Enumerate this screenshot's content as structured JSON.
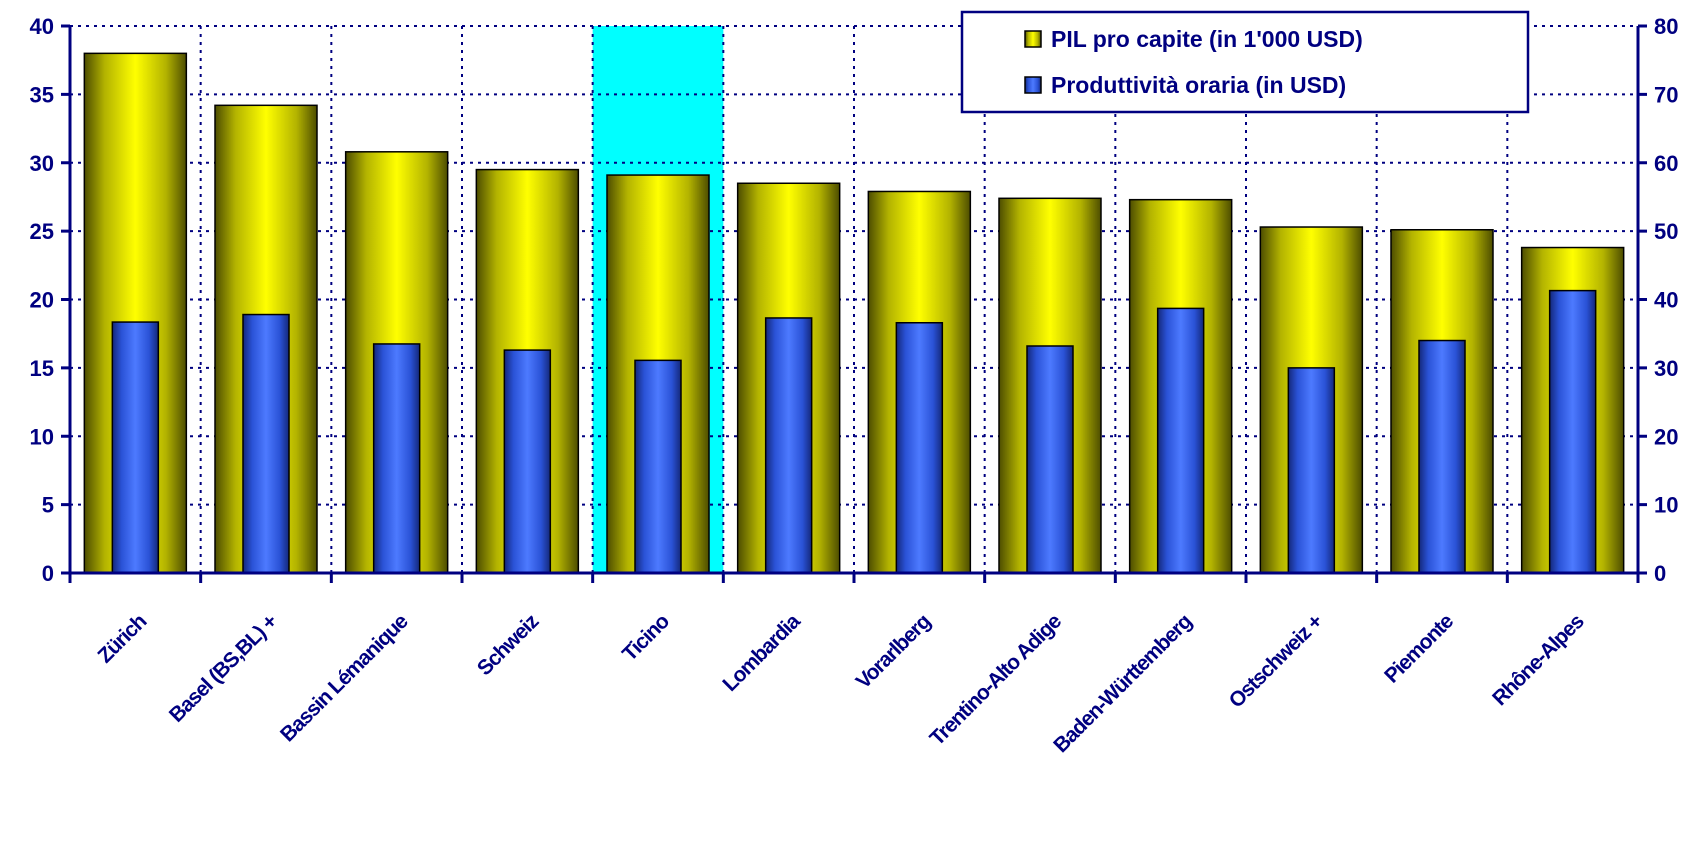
{
  "chart_data": {
    "type": "bar",
    "categories": [
      "Zürich",
      "Basel (BS,BL) +",
      "Bassin Lémanique",
      "Schweiz",
      "Ticino",
      "Lombardia",
      "Vorarlberg",
      "Trentino-Alto Adige",
      "Baden-Württemberg",
      "Ostschweiz +",
      "Piemonte",
      "Rhône-Alpes"
    ],
    "series": [
      {
        "name": "PIL pro capite (in 1'000 USD)",
        "axis": "left",
        "values": [
          38.0,
          34.2,
          30.8,
          29.5,
          29.1,
          28.5,
          27.9,
          27.4,
          27.3,
          25.3,
          25.1,
          23.8
        ]
      },
      {
        "name": "Produttività oraria (in USD)",
        "axis": "right",
        "values": [
          36.7,
          37.8,
          33.5,
          32.6,
          31.1,
          37.3,
          36.6,
          33.2,
          38.7,
          30.0,
          34.0,
          41.3
        ]
      }
    ],
    "left_axis": {
      "min": 0,
      "max": 40,
      "step": 5
    },
    "right_axis": {
      "min": 0,
      "max": 80,
      "step": 10
    },
    "highlight_category": "Ticino",
    "grid": true,
    "legend_position": "top-right",
    "title": "",
    "xlabel": "",
    "ylabel": ""
  },
  "colors": {
    "axis": "#000080",
    "series1": "#ffff00",
    "series2": "#3366ff",
    "highlight": "#00ffff"
  }
}
